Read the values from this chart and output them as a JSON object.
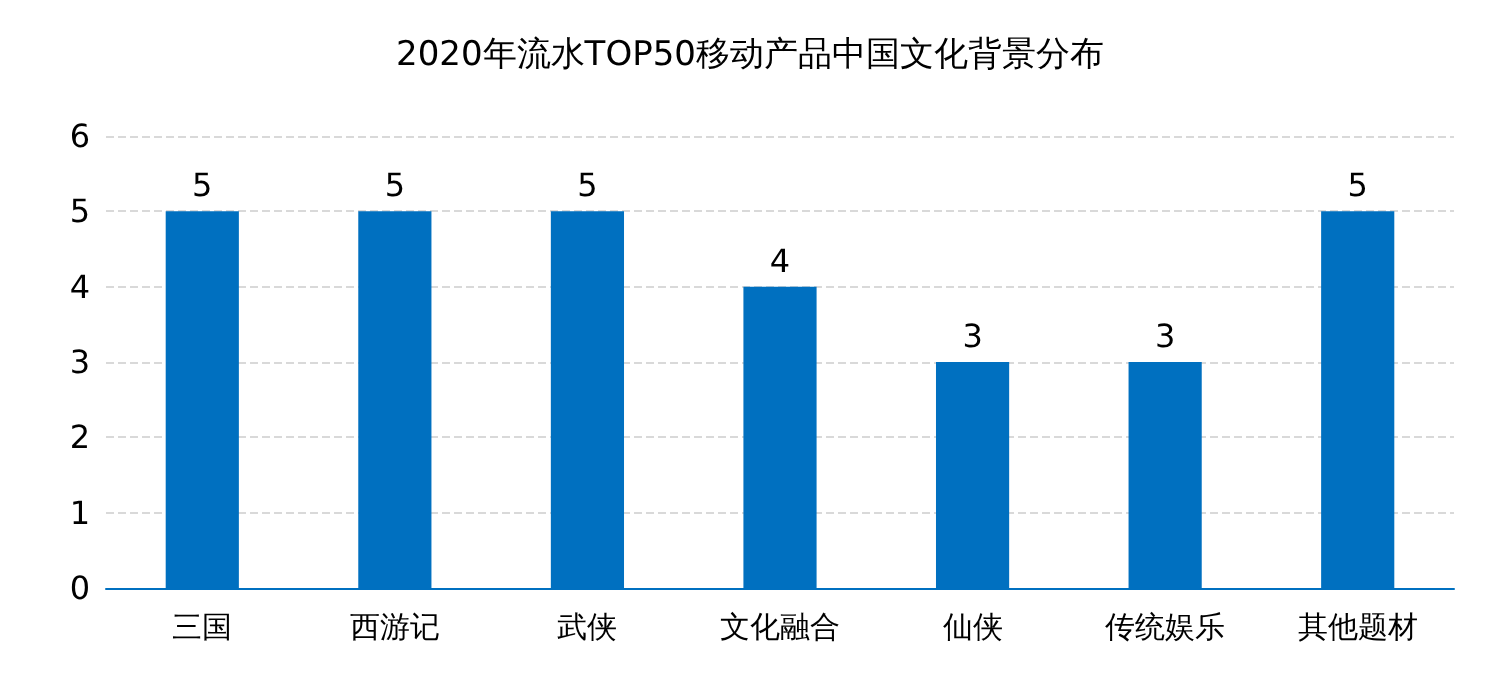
{
  "chart_data": {
    "type": "bar",
    "title": "2020年流水TOP50移动产品中国文化背景分布",
    "categories": [
      "三国",
      "西游记",
      "武侠",
      "文化融合",
      "仙侠",
      "传统娱乐",
      "其他题材"
    ],
    "values": [
      5,
      5,
      5,
      4,
      3,
      3,
      5
    ],
    "color": "#0070c0",
    "ylim": [
      0,
      6
    ],
    "yticks": [
      0,
      1,
      2,
      3,
      4,
      5,
      6
    ],
    "grid": "y",
    "data_labels": true
  }
}
